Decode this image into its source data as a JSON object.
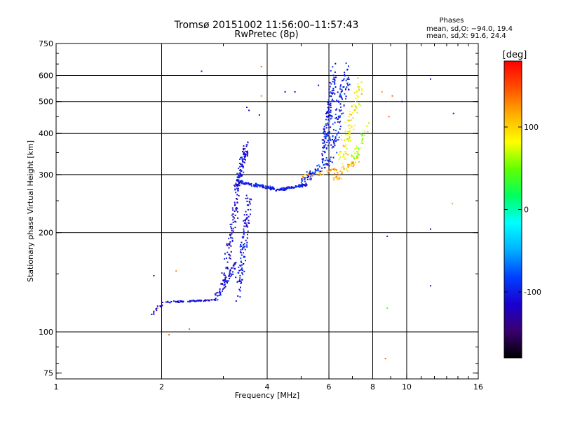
{
  "chart_data": {
    "type": "scatter",
    "title": "Tromsø 20151002 11:56:00–11:57:43",
    "subtitle": "RwPretec (8p)",
    "xlabel": "Frequency [MHz]",
    "ylabel": "Stationary phase Virtual Height [km]",
    "x_scale": "log",
    "y_scale": "log",
    "xlim": [
      1,
      16
    ],
    "ylim": [
      72,
      750
    ],
    "x_ticks": [
      1,
      2,
      4,
      6,
      8,
      10,
      16
    ],
    "y_ticks": [
      75,
      100,
      200,
      300,
      400,
      500,
      600,
      750
    ],
    "grid_x": [
      2,
      4,
      6,
      8,
      10
    ],
    "grid_y": [
      100,
      200,
      300,
      400,
      500,
      600
    ],
    "stats": {
      "title": "Phases",
      "line1": "mean, sd,O: −94.0, 19.4",
      "line2": "mean, sd,X:  91.6, 24.4"
    },
    "colorbar": {
      "label": "[deg]",
      "min": -180,
      "max": 180,
      "ticks": [
        100,
        0,
        -100
      ],
      "colors": [
        "#000000",
        "#3a0070",
        "#1a00d0",
        "#0040ff",
        "#00b0ff",
        "#00ffff",
        "#00ff60",
        "#60ff00",
        "#ffff00",
        "#ffb000",
        "#ff5000",
        "#ff0000"
      ]
    },
    "series": [
      {
        "segments": [
          {
            "x0": 1.85,
            "x1": 2.05,
            "y0": 112,
            "y1": 124,
            "phase": -110,
            "n": 14,
            "spread": 0.012
          },
          {
            "x0": 2.05,
            "x1": 2.85,
            "y0": 123,
            "y1": 125,
            "phase": -105,
            "n": 70,
            "spread": 0.008
          },
          {
            "x0": 2.85,
            "x1": 3.25,
            "y0": 126,
            "y1": 160,
            "phase": -110,
            "n": 60,
            "spread": 0.02
          },
          {
            "x0": 3.0,
            "x1": 3.3,
            "y0": 140,
            "y1": 260,
            "phase": -112,
            "n": 90,
            "spread": 0.05
          },
          {
            "x0": 3.3,
            "x1": 3.55,
            "y0": 135,
            "y1": 250,
            "phase": -105,
            "n": 110,
            "spread": 0.06
          },
          {
            "x0": 3.25,
            "x1": 3.5,
            "y0": 270,
            "y1": 365,
            "phase": -108,
            "n": 110,
            "spread": 0.05
          },
          {
            "x0": 3.3,
            "x1": 4.2,
            "y0": 285,
            "y1": 272,
            "phase": -100,
            "n": 110,
            "spread": 0.015
          },
          {
            "x0": 4.2,
            "x1": 5.2,
            "y0": 268,
            "y1": 280,
            "phase": -100,
            "n": 80,
            "spread": 0.012
          },
          {
            "x0": 5.0,
            "x1": 6.0,
            "y0": 285,
            "y1": 330,
            "phase": -95,
            "n": 70,
            "spread": 0.04
          },
          {
            "x0": 5.8,
            "x1": 6.2,
            "y0": 340,
            "y1": 600,
            "phase": -100,
            "n": 130,
            "spread": 0.06
          },
          {
            "x0": 6.1,
            "x1": 6.8,
            "y0": 350,
            "y1": 620,
            "phase": -95,
            "n": 110,
            "spread": 0.08
          },
          {
            "x0": 5.0,
            "x1": 6.3,
            "y0": 295,
            "y1": 310,
            "phase": 120,
            "n": 30,
            "spread": 0.02
          },
          {
            "x0": 6.2,
            "x1": 7.3,
            "y0": 290,
            "y1": 340,
            "phase": 110,
            "n": 50,
            "spread": 0.04
          },
          {
            "x0": 6.5,
            "x1": 7.4,
            "y0": 330,
            "y1": 560,
            "phase": 90,
            "n": 90,
            "spread": 0.07
          },
          {
            "x0": 7.0,
            "x1": 7.8,
            "y0": 330,
            "y1": 420,
            "phase": 60,
            "n": 35,
            "spread": 0.05
          }
        ],
        "outliers": [
          {
            "x": 2.6,
            "y": 618,
            "phase": -120
          },
          {
            "x": 3.85,
            "y": 638,
            "phase": 140
          },
          {
            "x": 3.85,
            "y": 520,
            "phase": 130
          },
          {
            "x": 4.5,
            "y": 535,
            "phase": -110
          },
          {
            "x": 4.8,
            "y": 535,
            "phase": -110
          },
          {
            "x": 5.6,
            "y": 560,
            "phase": -110
          },
          {
            "x": 3.5,
            "y": 480,
            "phase": -110
          },
          {
            "x": 3.55,
            "y": 470,
            "phase": -110
          },
          {
            "x": 3.8,
            "y": 455,
            "phase": -110
          },
          {
            "x": 8.5,
            "y": 535,
            "phase": 120
          },
          {
            "x": 9.1,
            "y": 520,
            "phase": 140
          },
          {
            "x": 9.7,
            "y": 500,
            "phase": -110
          },
          {
            "x": 8.9,
            "y": 450,
            "phase": 140
          },
          {
            "x": 11.7,
            "y": 585,
            "phase": -110
          },
          {
            "x": 13.6,
            "y": 460,
            "phase": -110
          },
          {
            "x": 13.5,
            "y": 245,
            "phase": 120
          },
          {
            "x": 11.7,
            "y": 205,
            "phase": -110
          },
          {
            "x": 8.8,
            "y": 195,
            "phase": -120
          },
          {
            "x": 8.8,
            "y": 118,
            "phase": 40
          },
          {
            "x": 11.7,
            "y": 138,
            "phase": -110
          },
          {
            "x": 8.7,
            "y": 83,
            "phase": 140
          },
          {
            "x": 2.1,
            "y": 98,
            "phase": 140
          },
          {
            "x": 2.4,
            "y": 102,
            "phase": 140
          },
          {
            "x": 2.2,
            "y": 153,
            "phase": 130
          },
          {
            "x": 1.9,
            "y": 148,
            "phase": -110
          },
          {
            "x": 1.95,
            "y": 118,
            "phase": 130
          }
        ]
      }
    ]
  }
}
